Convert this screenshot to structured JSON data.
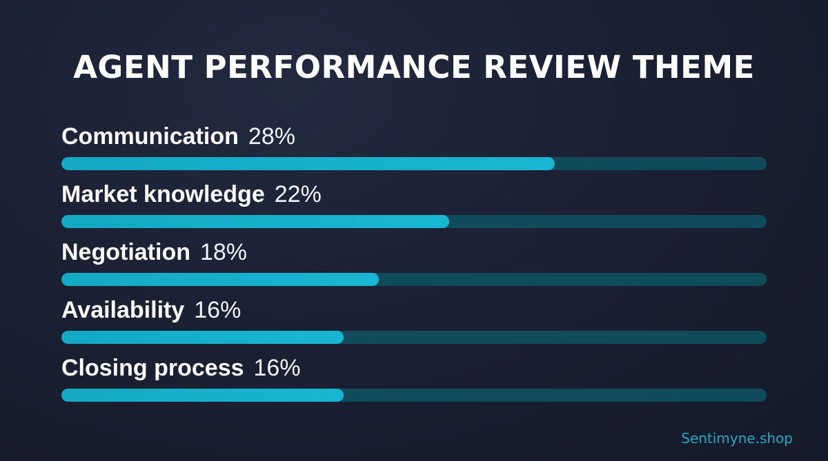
{
  "chart_data": {
    "type": "bar",
    "orientation": "horizontal",
    "title": "AGENT PERFORMANCE REVIEW THEME",
    "categories": [
      "Communication",
      "Market knowledge",
      "Negotiation",
      "Availability",
      "Closing process"
    ],
    "labels": [
      "28%",
      "22%",
      "18%",
      "16%",
      "16%"
    ],
    "values": [
      28,
      22,
      18,
      16,
      16
    ],
    "xlim": [
      0,
      40
    ],
    "grid": false,
    "colors": {
      "bar": "#16b0cc",
      "track": "#0f4b5b",
      "background": "#1b2033",
      "text": "#ffffff"
    }
  },
  "footer": {
    "brand": "Sentimyne.shop"
  }
}
